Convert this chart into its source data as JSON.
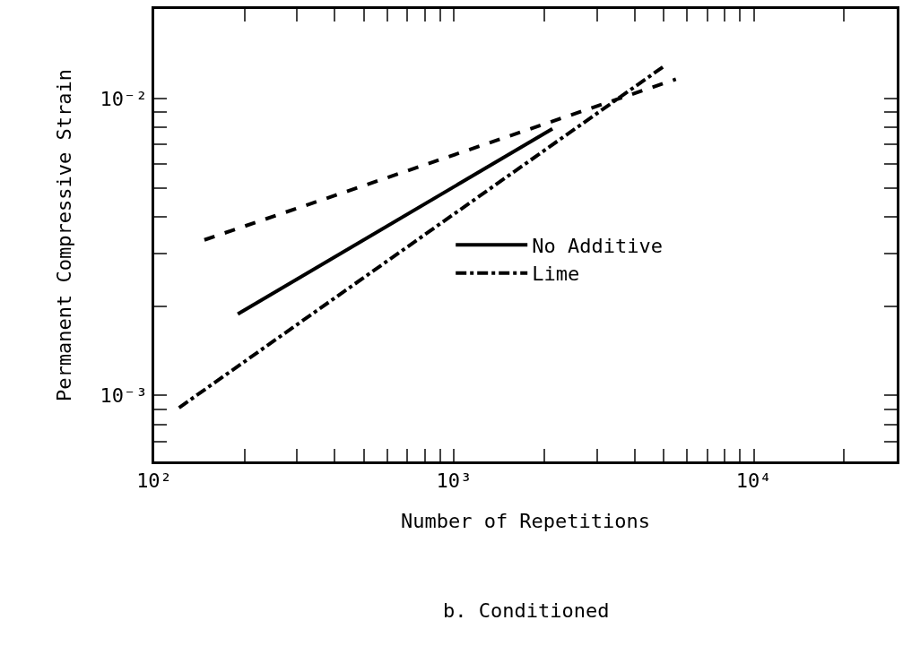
{
  "chart_data": {
    "type": "line",
    "xlabel": "Number of Repetitions",
    "ylabel": "Permanent Compressive Strain",
    "log": "xy",
    "grid": false,
    "legend": "right",
    "marker": "none",
    "xlim": [
      100,
      30000
    ],
    "ylim": [
      0.0006,
      0.02
    ],
    "xticks": [
      {
        "value": 100,
        "label": "10²"
      },
      {
        "value": 200,
        "label": null
      },
      {
        "value": 300,
        "label": null
      },
      {
        "value": 400,
        "label": null
      },
      {
        "value": 500,
        "label": null
      },
      {
        "value": 600,
        "label": null
      },
      {
        "value": 700,
        "label": null
      },
      {
        "value": 800,
        "label": null
      },
      {
        "value": 900,
        "label": null
      },
      {
        "value": 1000,
        "label": "10³"
      },
      {
        "value": 2000,
        "label": null
      },
      {
        "value": 3000,
        "label": null
      },
      {
        "value": 4000,
        "label": null
      },
      {
        "value": 5000,
        "label": null
      },
      {
        "value": 6000,
        "label": null
      },
      {
        "value": 7000,
        "label": null
      },
      {
        "value": 8000,
        "label": null
      },
      {
        "value": 9000,
        "label": null
      },
      {
        "value": 10000,
        "label": "10⁴"
      },
      {
        "value": 20000,
        "label": null
      }
    ],
    "yticks": [
      {
        "value": 0.0007,
        "label": null
      },
      {
        "value": 0.0008,
        "label": null
      },
      {
        "value": 0.0009,
        "label": null
      },
      {
        "value": 0.001,
        "label": "10⁻³"
      },
      {
        "value": 0.002,
        "label": null
      },
      {
        "value": 0.003,
        "label": null
      },
      {
        "value": 0.004,
        "label": null
      },
      {
        "value": 0.005,
        "label": null
      },
      {
        "value": 0.006,
        "label": null
      },
      {
        "value": 0.007,
        "label": null
      },
      {
        "value": 0.008,
        "label": null
      },
      {
        "value": 0.009,
        "label": null
      },
      {
        "value": 0.01,
        "label": "10⁻²"
      }
    ],
    "series": [
      {
        "name": "No Additive",
        "color": "#000000",
        "line_style": "solid",
        "x": [
          190,
          2130
        ],
        "values": [
          0.00188,
          0.0079
        ]
      },
      {
        "name": "Lime",
        "color": "#000000",
        "line_style": "dashdot",
        "x": [
          121,
          5000
        ],
        "values": [
          0.00091,
          0.0128
        ]
      },
      {
        "color": "#000000",
        "line_style": "dashed",
        "x": [
          147,
          5500
        ],
        "values": [
          0.00334,
          0.0116
        ]
      }
    ],
    "annotations": [
      "b. Conditioned"
    ]
  }
}
